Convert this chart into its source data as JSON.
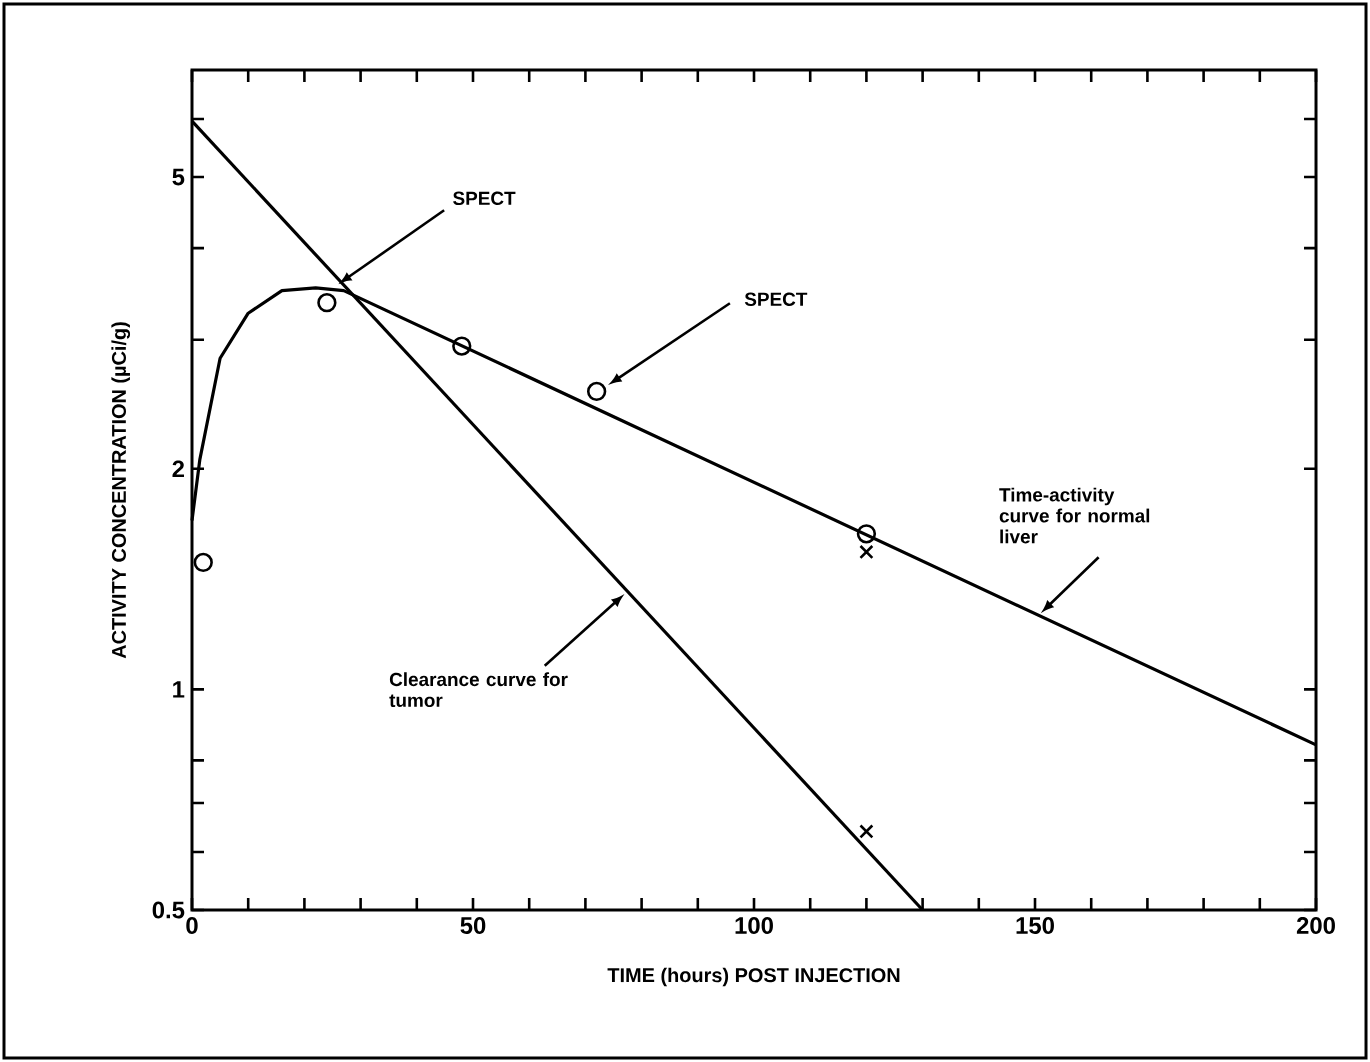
{
  "chart_data": {
    "type": "line",
    "xlabel": "TIME (hours) POST INJECTION",
    "ylabel": "ACTIVITY CONCENTRATION (µCi/g)",
    "log": "y",
    "xlim": [
      0,
      200
    ],
    "ylim": [
      0.5,
      7
    ],
    "xticks": [
      0,
      {
        "value": 10,
        "label": null
      },
      {
        "value": 20,
        "label": null
      },
      {
        "value": 30,
        "label": null
      },
      {
        "value": 40,
        "label": null
      },
      50,
      {
        "value": 60,
        "label": null
      },
      {
        "value": 70,
        "label": null
      },
      {
        "value": 80,
        "label": null
      },
      {
        "value": 90,
        "label": null
      },
      100,
      {
        "value": 110,
        "label": null
      },
      {
        "value": 120,
        "label": null
      },
      {
        "value": 130,
        "label": null
      },
      {
        "value": 140,
        "label": null
      },
      150,
      {
        "value": 160,
        "label": null
      },
      {
        "value": 170,
        "label": null
      },
      {
        "value": 180,
        "label": null
      },
      {
        "value": 190,
        "label": null
      },
      200
    ],
    "yticks": [
      0.5,
      {
        "value": 0.6,
        "label": null
      },
      {
        "value": 0.7,
        "label": null
      },
      {
        "value": 0.8,
        "label": null
      },
      1,
      2,
      {
        "value": 3,
        "label": null
      },
      {
        "value": 4,
        "label": null
      },
      5,
      {
        "value": 6,
        "label": null
      }
    ],
    "marker": "none",
    "line_style": "solid",
    "series": [
      {
        "color": "#000000",
        "x": [
          0,
          1.4,
          5,
          10,
          16,
          22,
          27,
          200
        ],
        "values": [
          1.7,
          2.06,
          2.83,
          3.26,
          3.5,
          3.53,
          3.5,
          0.84
        ]
      },
      {
        "color": "#000000",
        "x": [
          0,
          130
        ],
        "values": [
          5.96,
          0.5
        ]
      },
      {
        "type": "scatter",
        "color": "#000000",
        "marker": "circle",
        "x": [
          2,
          24,
          48,
          72
        ],
        "values": [
          1.49,
          3.37,
          2.94,
          2.55
        ]
      },
      {
        "type": "scatter",
        "color": "#000000",
        "marker": "circle",
        "x": [
          120
        ],
        "values": [
          1.63
        ]
      },
      {
        "type": "scatter",
        "color": "#000000",
        "marker": "cross",
        "x": [
          120
        ],
        "values": [
          1.54
        ]
      },
      {
        "type": "scatter",
        "color": "#000000",
        "marker": "cross",
        "x": [
          120
        ],
        "values": [
          0.64
        ]
      }
    ],
    "annotations": [
      {
        "text": "SPECT",
        "x": 26,
        "y": 3.57
      },
      {
        "text": "SPECT",
        "x": 74,
        "y": 2.6
      },
      {
        "text": "Time-activity curve for normal liver",
        "x": 151,
        "y": 1.27
      },
      {
        "text": "Clearance curve for tumor",
        "x": 77,
        "y": 1.35
      }
    ]
  }
}
